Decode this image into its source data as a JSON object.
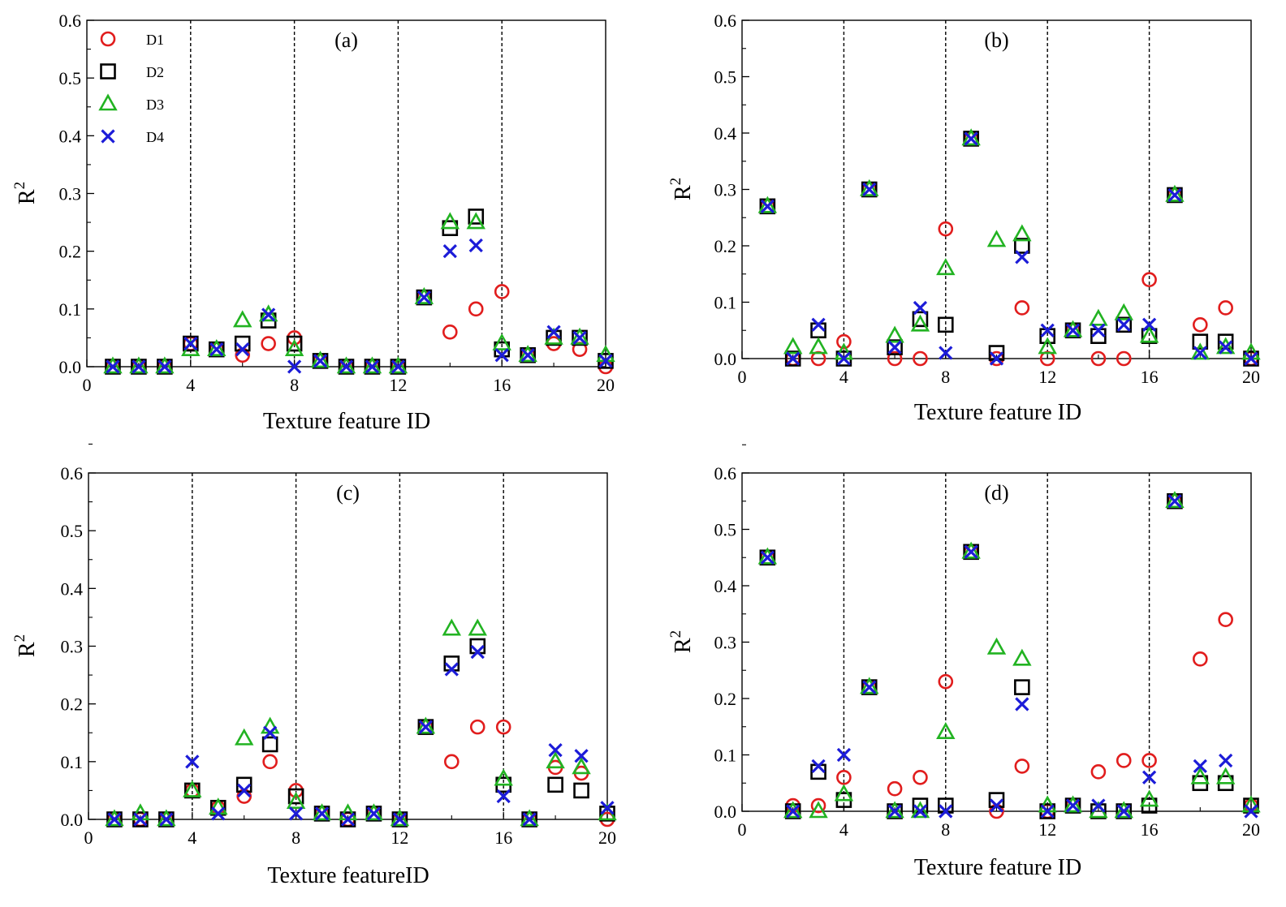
{
  "figure": {
    "ylabel_base": "R",
    "ylabel_sup": "2"
  },
  "legend": [
    {
      "name": "D1",
      "marker": "circle",
      "color": "#e11d1d"
    },
    {
      "name": "D2",
      "marker": "square",
      "color": "#000000"
    },
    {
      "name": "D3",
      "marker": "triangle",
      "color": "#22b322"
    },
    {
      "name": "D4",
      "marker": "x",
      "color": "#1c1cd8"
    }
  ],
  "chart_data": [
    {
      "type": "scatter",
      "label": "(a)",
      "xlabel": "Texture feature ID",
      "ylabel": "R2",
      "xlim": [
        0,
        20
      ],
      "ylim": [
        0,
        0.6
      ],
      "xticks": [
        "0",
        "4",
        "8",
        "12",
        "16",
        "20"
      ],
      "yticks": [
        "0.0",
        "0.1",
        "0.2",
        "0.3",
        "0.4",
        "0.5",
        "0.6"
      ],
      "vlines": [
        4,
        8,
        12,
        16
      ],
      "show_legend": true,
      "x": [
        1,
        2,
        3,
        4,
        5,
        6,
        7,
        8,
        9,
        10,
        11,
        12,
        13,
        14,
        15,
        16,
        17,
        18,
        19,
        20
      ],
      "series": [
        {
          "name": "D1",
          "values": [
            0,
            0,
            0,
            0.04,
            0.03,
            0.02,
            0.04,
            0.05,
            0.01,
            0,
            0,
            0,
            0.12,
            0.06,
            0.1,
            0.13,
            0.02,
            0.04,
            0.03,
            0
          ]
        },
        {
          "name": "D2",
          "values": [
            0,
            0,
            0,
            0.04,
            0.03,
            0.04,
            0.08,
            0.04,
            0.01,
            0,
            0,
            0,
            0.12,
            0.24,
            0.26,
            0.03,
            0.02,
            0.05,
            0.05,
            0.01
          ]
        },
        {
          "name": "D3",
          "values": [
            0,
            0,
            0,
            0.03,
            0.03,
            0.08,
            0.09,
            0.03,
            0.01,
            0,
            0,
            0,
            0.12,
            0.25,
            0.25,
            0.04,
            0.02,
            0.05,
            0.05,
            0.02
          ]
        },
        {
          "name": "D4",
          "values": [
            0,
            0,
            0,
            0.04,
            0.03,
            0.03,
            0.09,
            0,
            0.01,
            0,
            0,
            0,
            0.12,
            0.2,
            0.21,
            0.02,
            0.02,
            0.06,
            0.05,
            0.01
          ]
        }
      ]
    },
    {
      "type": "scatter",
      "label": "(b)",
      "xlabel": "Texture feature ID",
      "ylabel": "R2",
      "xlim": [
        0,
        20
      ],
      "ylim": [
        0,
        0.6
      ],
      "xticks": [
        "0",
        "4",
        "8",
        "12",
        "16",
        "20"
      ],
      "yticks": [
        "0.0",
        "0.1",
        "0.2",
        "0.3",
        "0.4",
        "0.5",
        "0.6"
      ],
      "vlines": [
        4,
        8,
        12,
        16
      ],
      "show_legend": false,
      "x": [
        1,
        2,
        3,
        4,
        5,
        6,
        7,
        8,
        9,
        10,
        11,
        12,
        13,
        14,
        15,
        16,
        17,
        18,
        19,
        20
      ],
      "series": [
        {
          "name": "D1",
          "values": [
            0.27,
            0,
            0,
            0.03,
            0.3,
            0,
            0,
            0.23,
            0.39,
            0,
            0.09,
            0,
            0.05,
            0,
            0,
            0.14,
            0.29,
            0.06,
            0.09,
            0
          ]
        },
        {
          "name": "D2",
          "values": [
            0.27,
            0,
            0.05,
            0,
            0.3,
            0.02,
            0.07,
            0.06,
            0.39,
            0.01,
            0.2,
            0.04,
            0.05,
            0.04,
            0.06,
            0.04,
            0.29,
            0.03,
            0.03,
            0
          ]
        },
        {
          "name": "D3",
          "values": [
            0.27,
            0.02,
            0.02,
            0.01,
            0.3,
            0.04,
            0.06,
            0.16,
            0.39,
            0.21,
            0.22,
            0.02,
            0.05,
            0.07,
            0.08,
            0.04,
            0.29,
            0.01,
            0.02,
            0.01
          ]
        },
        {
          "name": "D4",
          "values": [
            0.27,
            0,
            0.06,
            0,
            0.3,
            0.02,
            0.09,
            0.01,
            0.39,
            0,
            0.18,
            0.05,
            0.05,
            0.05,
            0.06,
            0.06,
            0.29,
            0.01,
            0.02,
            0
          ]
        }
      ]
    },
    {
      "type": "scatter",
      "label": "(c)",
      "xlabel": "Texture featureID",
      "ylabel": "R2",
      "xlim": [
        0,
        20
      ],
      "ylim": [
        0,
        0.6
      ],
      "xticks": [
        "0",
        "4",
        "8",
        "12",
        "16",
        "20"
      ],
      "yticks": [
        "0.0",
        "0.1",
        "0.2",
        "0.3",
        "0.4",
        "0.5",
        "0.6"
      ],
      "vlines": [
        4,
        8,
        12,
        16
      ],
      "show_legend": false,
      "x": [
        1,
        2,
        3,
        4,
        5,
        6,
        7,
        8,
        9,
        10,
        11,
        12,
        13,
        14,
        15,
        16,
        17,
        18,
        19,
        20
      ],
      "series": [
        {
          "name": "D1",
          "values": [
            0,
            0,
            0,
            0.05,
            0.02,
            0.04,
            0.1,
            0.05,
            0.01,
            0,
            0.01,
            0,
            0.16,
            0.1,
            0.16,
            0.16,
            0,
            0.09,
            0.08,
            0
          ]
        },
        {
          "name": "D2",
          "values": [
            0,
            0,
            0,
            0.05,
            0.02,
            0.06,
            0.13,
            0.04,
            0.01,
            0,
            0.01,
            0,
            0.16,
            0.27,
            0.3,
            0.06,
            0,
            0.06,
            0.05,
            0.01
          ]
        },
        {
          "name": "D3",
          "values": [
            0,
            0.01,
            0,
            0.05,
            0.02,
            0.14,
            0.16,
            0.03,
            0.01,
            0.01,
            0.01,
            0,
            0.16,
            0.33,
            0.33,
            0.07,
            0,
            0.1,
            0.09,
            0.01
          ]
        },
        {
          "name": "D4",
          "values": [
            0,
            0,
            0,
            0.1,
            0.01,
            0.05,
            0.15,
            0.01,
            0.01,
            0,
            0.01,
            0,
            0.16,
            0.26,
            0.29,
            0.04,
            0,
            0.12,
            0.11,
            0.02
          ]
        }
      ]
    },
    {
      "type": "scatter",
      "label": "(d)",
      "xlabel": "Texture feature ID",
      "ylabel": "R2",
      "xlim": [
        0,
        20
      ],
      "ylim": [
        0,
        0.6
      ],
      "xticks": [
        "0",
        "4",
        "8",
        "12",
        "16",
        "20"
      ],
      "yticks": [
        "0.0",
        "0.1",
        "0.2",
        "0.3",
        "0.4",
        "0.5",
        "0.6"
      ],
      "vlines": [
        4,
        8,
        12,
        16
      ],
      "show_legend": false,
      "x": [
        1,
        2,
        3,
        4,
        5,
        6,
        7,
        8,
        9,
        10,
        11,
        12,
        13,
        14,
        15,
        16,
        17,
        18,
        19,
        20
      ],
      "series": [
        {
          "name": "D1",
          "values": [
            0.45,
            0.01,
            0.01,
            0.06,
            0.22,
            0.04,
            0.06,
            0.23,
            0.46,
            0,
            0.08,
            0,
            0.01,
            0.07,
            0.09,
            0.09,
            0.55,
            0.27,
            0.34,
            0.01
          ]
        },
        {
          "name": "D2",
          "values": [
            0.45,
            0,
            0.07,
            0.02,
            0.22,
            0,
            0.01,
            0.01,
            0.46,
            0.02,
            0.22,
            0,
            0.01,
            0,
            0,
            0.01,
            0.55,
            0.05,
            0.05,
            0.01
          ]
        },
        {
          "name": "D3",
          "values": [
            0.45,
            0,
            0,
            0.03,
            0.22,
            0,
            0,
            0.14,
            0.46,
            0.29,
            0.27,
            0.01,
            0.01,
            0,
            0,
            0.02,
            0.55,
            0.06,
            0.06,
            0.01
          ]
        },
        {
          "name": "D4",
          "values": [
            0.45,
            0,
            0.08,
            0.1,
            0.22,
            0,
            0,
            0,
            0.46,
            0.01,
            0.19,
            0,
            0.01,
            0.01,
            0,
            0.06,
            0.55,
            0.08,
            0.09,
            0
          ]
        }
      ]
    }
  ]
}
